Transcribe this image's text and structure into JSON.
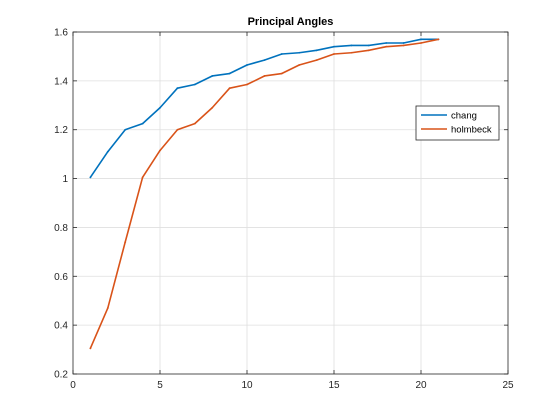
{
  "chart_data": {
    "type": "line",
    "title": "Principal Angles",
    "xlabel": "",
    "ylabel": "",
    "xlim": [
      0,
      25
    ],
    "ylim": [
      0.2,
      1.6
    ],
    "xticks": [
      0,
      5,
      10,
      15,
      20,
      25
    ],
    "yticks": [
      0.2,
      0.4,
      0.6,
      0.8,
      1,
      1.2,
      1.4,
      1.6
    ],
    "xtick_labels": [
      "0",
      "5",
      "10",
      "15",
      "20",
      "25"
    ],
    "ytick_labels": [
      "0.2",
      "0.4",
      "0.6",
      "0.8",
      "1",
      "1.2",
      "1.4",
      "1.6"
    ],
    "grid": true,
    "legend_placement": "right",
    "x": [
      1,
      2,
      3,
      4,
      5,
      6,
      7,
      8,
      9,
      10,
      11,
      12,
      13,
      14,
      15,
      16,
      17,
      18,
      19,
      20,
      21
    ],
    "series": [
      {
        "name": "chang",
        "color": "#0072BD",
        "values": [
          1.005,
          1.11,
          1.2,
          1.225,
          1.29,
          1.37,
          1.385,
          1.42,
          1.43,
          1.465,
          1.485,
          1.51,
          1.515,
          1.525,
          1.54,
          1.545,
          1.545,
          1.555,
          1.555,
          1.57,
          1.57
        ]
      },
      {
        "name": "holmbeck",
        "color": "#D95319",
        "values": [
          0.305,
          0.47,
          0.74,
          1.005,
          1.115,
          1.2,
          1.225,
          1.29,
          1.37,
          1.385,
          1.42,
          1.43,
          1.465,
          1.485,
          1.51,
          1.515,
          1.525,
          1.54,
          1.545,
          1.555,
          1.57
        ]
      }
    ]
  }
}
